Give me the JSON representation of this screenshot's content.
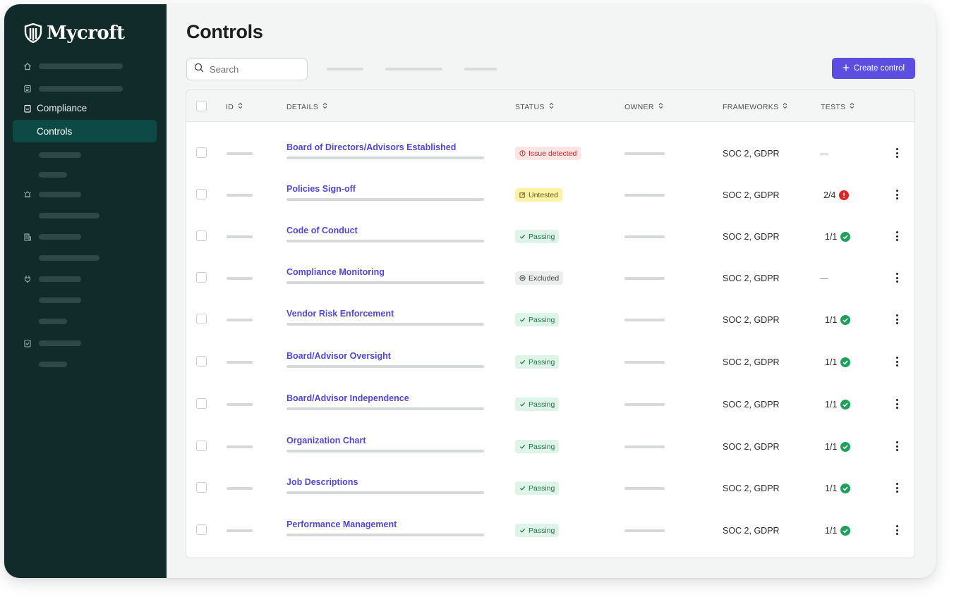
{
  "app": {
    "name": "Mycroft"
  },
  "sidebar": {
    "compliance_label": "Compliance",
    "controls_label": "Controls"
  },
  "page": {
    "title": "Controls"
  },
  "toolbar": {
    "search_placeholder": "Search",
    "create_label": "Create control"
  },
  "table": {
    "headers": {
      "id": "ID",
      "details": "DETAILS",
      "status": "STATUS",
      "owner": "OWNER",
      "frameworks": "FRAMEWORKS",
      "tests": "TESTS"
    },
    "rows": [
      {
        "title": "Board of Directors/Advisors Established",
        "status": "Issue detected",
        "status_kind": "issue",
        "frameworks": "SOC 2, GDPR",
        "tests": "—",
        "tests_state": "none"
      },
      {
        "title": "Policies Sign-off",
        "status": "Untested",
        "status_kind": "untested",
        "frameworks": "SOC 2, GDPR",
        "tests": "2/4",
        "tests_state": "error"
      },
      {
        "title": "Code of Conduct",
        "status": "Passing",
        "status_kind": "passing",
        "frameworks": "SOC 2, GDPR",
        "tests": "1/1",
        "tests_state": "ok"
      },
      {
        "title": "Compliance Monitoring",
        "status": "Excluded",
        "status_kind": "excluded",
        "frameworks": "SOC 2, GDPR",
        "tests": "—",
        "tests_state": "none"
      },
      {
        "title": "Vendor Risk Enforcement",
        "status": "Passing",
        "status_kind": "passing",
        "frameworks": "SOC 2, GDPR",
        "tests": "1/1",
        "tests_state": "ok"
      },
      {
        "title": "Board/Advisor Oversight",
        "status": "Passing",
        "status_kind": "passing",
        "frameworks": "SOC 2, GDPR",
        "tests": "1/1",
        "tests_state": "ok"
      },
      {
        "title": "Board/Advisor Independence",
        "status": "Passing",
        "status_kind": "passing",
        "frameworks": "SOC 2, GDPR",
        "tests": "1/1",
        "tests_state": "ok"
      },
      {
        "title": "Organization Chart",
        "status": "Passing",
        "status_kind": "passing",
        "frameworks": "SOC 2, GDPR",
        "tests": "1/1",
        "tests_state": "ok"
      },
      {
        "title": "Job Descriptions",
        "status": "Passing",
        "status_kind": "passing",
        "frameworks": "SOC 2, GDPR",
        "tests": "1/1",
        "tests_state": "ok"
      },
      {
        "title": "Performance Management",
        "status": "Passing",
        "status_kind": "passing",
        "frameworks": "SOC 2, GDPR",
        "tests": "1/1",
        "tests_state": "ok"
      }
    ]
  },
  "colors": {
    "sidebar_bg": "#112b2a",
    "sidebar_active": "#0d4a45",
    "accent": "#5b4ee0",
    "link": "#5147d6",
    "passing": "#1fa05a",
    "error": "#e02424"
  }
}
